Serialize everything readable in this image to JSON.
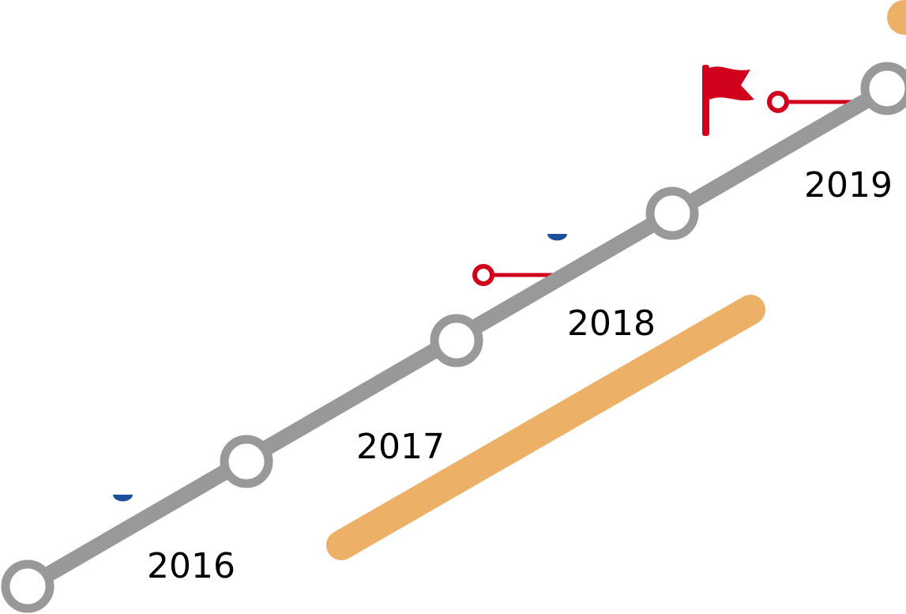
{
  "timeline": {
    "years": [
      {
        "label": "2016"
      },
      {
        "label": "2017"
      },
      {
        "label": "2018"
      },
      {
        "label": "2019"
      }
    ]
  },
  "colors": {
    "track": "#999999",
    "node_fill": "#ffffff",
    "accent_red": "#d0021b",
    "accent_orange": "#ecb166",
    "accent_blue": "#1f4e9c"
  },
  "icons": {
    "goal": "flag-icon"
  }
}
